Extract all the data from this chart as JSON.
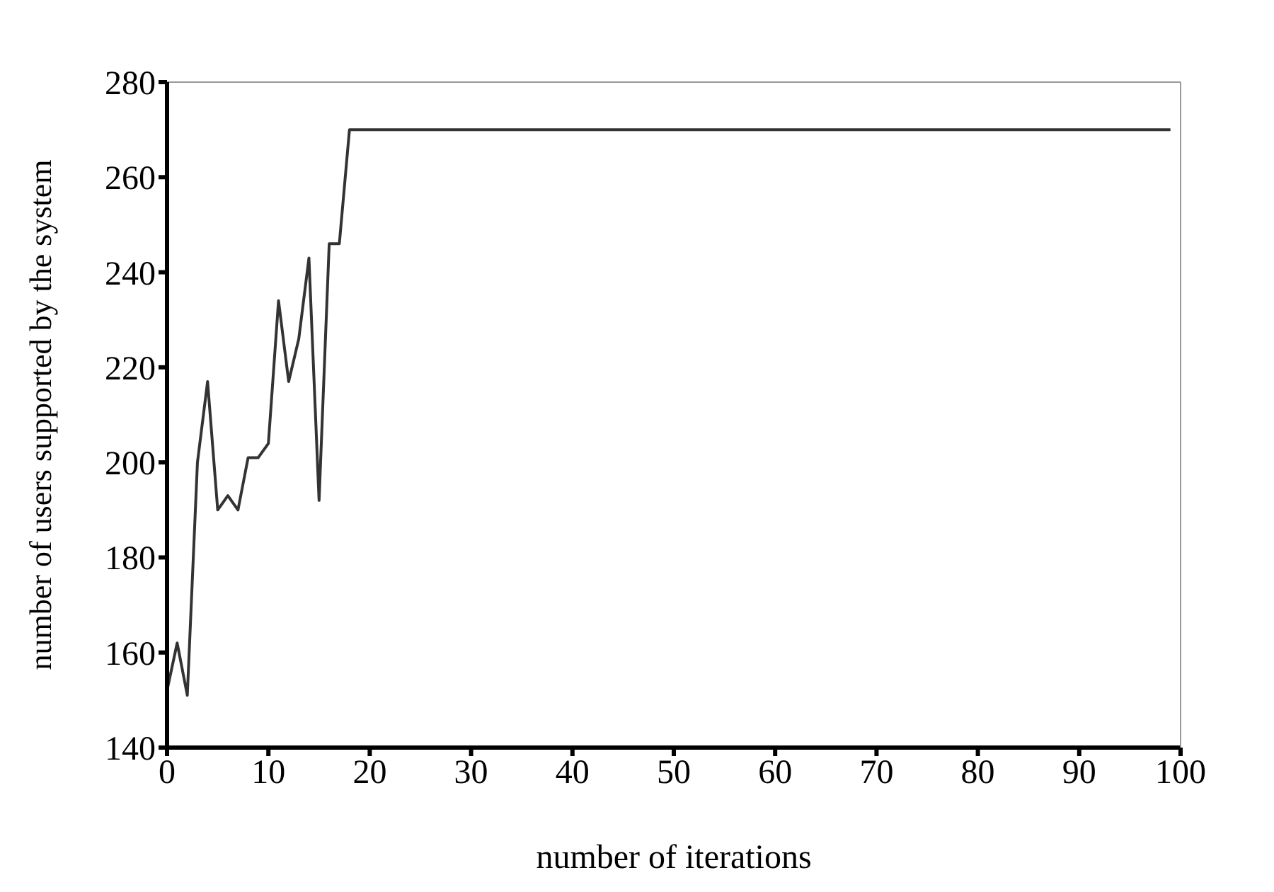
{
  "chart_data": {
    "type": "line",
    "xlabel": "number of iterations",
    "ylabel": "number of users supported by the system",
    "x": [
      0,
      1,
      2,
      3,
      4,
      5,
      6,
      7,
      8,
      9,
      10,
      11,
      12,
      13,
      14,
      15,
      16,
      17,
      18,
      99
    ],
    "series": [
      {
        "color": "#333333",
        "values": [
          152,
          162,
          151,
          200,
          217,
          190,
          193,
          190,
          201,
          201,
          204,
          234,
          217,
          226,
          243,
          192,
          246,
          246,
          270,
          270
        ]
      }
    ],
    "xlim": [
      0,
      100
    ],
    "xticks": [
      0,
      10,
      20,
      30,
      40,
      50,
      60,
      70,
      80,
      90,
      100
    ],
    "ylim": [
      140,
      280
    ],
    "yticks": [
      140,
      160,
      180,
      200,
      220,
      240,
      260,
      280
    ],
    "grid": false,
    "legend": false,
    "marker": "none",
    "line_style": "solid"
  }
}
